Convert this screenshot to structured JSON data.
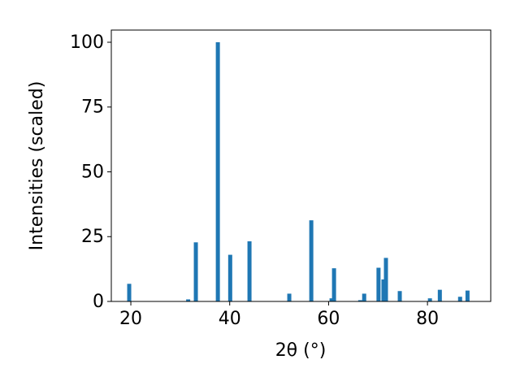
{
  "chart_data": {
    "type": "bar",
    "x": [
      19.67,
      31.6,
      33.15,
      37.6,
      40.1,
      44.0,
      52.05,
      56.5,
      60.6,
      61.1,
      66.4,
      67.2,
      70.1,
      71.1,
      71.6,
      74.4,
      80.5,
      82.5,
      86.6,
      88.1
    ],
    "values": [
      6.8,
      0.8,
      22.8,
      100,
      18,
      23.2,
      3,
      31.3,
      1.2,
      12.8,
      0.5,
      3,
      13,
      8.5,
      16.8,
      4,
      1.2,
      4.5,
      1.8,
      4.2
    ],
    "color": "#1f77b4",
    "xlabel": "2θ (°)",
    "ylabel": "Intensities (scaled)",
    "xlim": [
      16.05,
      92.8
    ],
    "xticks": [
      20,
      40,
      60,
      80
    ],
    "ylim": [
      0,
      104.7
    ],
    "yticks": [
      0,
      25,
      50,
      75,
      100
    ],
    "grid": false
  }
}
